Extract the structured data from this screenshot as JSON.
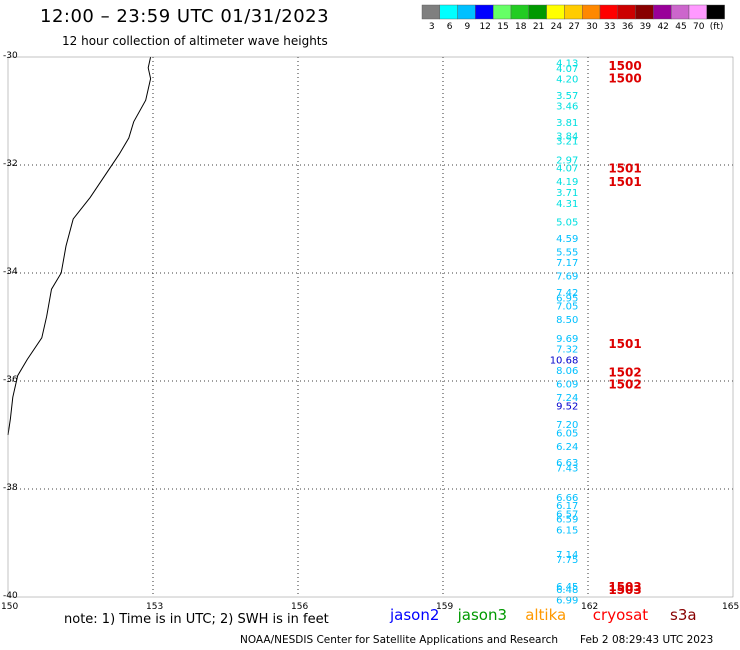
{
  "header": {
    "title": "12:00 – 23:59 UTC 01/31/2023",
    "subtitle": "12 hour collection of altimeter wave heights"
  },
  "color_scale": {
    "colors": [
      "#7f7f7f",
      "#00ffff",
      "#00c0ff",
      "#0000ff",
      "#66ff66",
      "#22cc22",
      "#009900",
      "#ffff00",
      "#ffcc00",
      "#ff8800",
      "#ff0000",
      "#cc0000",
      "#880000",
      "#990099",
      "#cc66cc",
      "#ff99ff",
      "#000000"
    ],
    "labels": [
      "3",
      "6",
      "9",
      "12",
      "15",
      "18",
      "21",
      "24",
      "27",
      "30",
      "33",
      "36",
      "39",
      "42",
      "45",
      "70",
      "(ft)"
    ]
  },
  "map": {
    "lon_ticks": [
      "150",
      "153",
      "156",
      "159",
      "162",
      "165"
    ],
    "lat_ticks": [
      "-30",
      "-32",
      "-34",
      "-36",
      "-38",
      "-40"
    ],
    "lon_range": [
      150,
      165
    ],
    "lat_range": [
      -30,
      -40
    ],
    "grid": "dotted"
  },
  "track": {
    "lon": 161.8,
    "readings": [
      {
        "lat": -30.1,
        "value": "4.13",
        "color": "#00e0e0"
      },
      {
        "lat": -30.2,
        "value": "4.07",
        "color": "#00e0e0"
      },
      {
        "lat": -30.4,
        "value": "4.20",
        "color": "#00e0e0"
      },
      {
        "lat": -30.7,
        "value": "3.57",
        "color": "#00e0e0"
      },
      {
        "lat": -30.9,
        "value": "3.46",
        "color": "#00e0e0"
      },
      {
        "lat": -31.2,
        "value": "3.81",
        "color": "#00e0e0"
      },
      {
        "lat": -31.45,
        "value": "3.84",
        "color": "#00e0e0"
      },
      {
        "lat": -31.55,
        "value": "3.21",
        "color": "#00e0e0"
      },
      {
        "lat": -31.9,
        "value": "2.97",
        "color": "#00e0e0"
      },
      {
        "lat": -32.05,
        "value": "4.07",
        "color": "#00e0e0"
      },
      {
        "lat": -32.3,
        "value": "4.19",
        "color": "#00e0e0"
      },
      {
        "lat": -32.5,
        "value": "3.71",
        "color": "#00e0e0"
      },
      {
        "lat": -32.7,
        "value": "4.31",
        "color": "#00e0e0"
      },
      {
        "lat": -33.05,
        "value": "5.05",
        "color": "#00e0e0"
      },
      {
        "lat": -33.35,
        "value": "4.59",
        "color": "#00c0ff"
      },
      {
        "lat": -33.6,
        "value": "5.55",
        "color": "#00c0ff"
      },
      {
        "lat": -33.8,
        "value": "7.17",
        "color": "#00c0ff"
      },
      {
        "lat": -34.05,
        "value": "7.69",
        "color": "#00c0ff"
      },
      {
        "lat": -34.35,
        "value": "7.42",
        "color": "#00c0ff"
      },
      {
        "lat": -34.45,
        "value": "6.95",
        "color": "#00c0ff"
      },
      {
        "lat": -34.6,
        "value": "7.05",
        "color": "#00c0ff"
      },
      {
        "lat": -34.85,
        "value": "8.50",
        "color": "#00c0ff"
      },
      {
        "lat": -35.2,
        "value": "9.69",
        "color": "#00c0ff"
      },
      {
        "lat": -35.4,
        "value": "7.32",
        "color": "#00c0ff"
      },
      {
        "lat": -35.6,
        "value": "10.68",
        "color": "#0000cc"
      },
      {
        "lat": -35.8,
        "value": "8.06",
        "color": "#00c0ff"
      },
      {
        "lat": -36.05,
        "value": "6.09",
        "color": "#00c0ff"
      },
      {
        "lat": -36.3,
        "value": "7.24",
        "color": "#00c0ff"
      },
      {
        "lat": -36.45,
        "value": "9.52",
        "color": "#0000cc"
      },
      {
        "lat": -36.8,
        "value": "7.20",
        "color": "#00c0ff"
      },
      {
        "lat": -36.95,
        "value": "6.05",
        "color": "#00c0ff"
      },
      {
        "lat": -37.2,
        "value": "6.24",
        "color": "#00c0ff"
      },
      {
        "lat": -37.5,
        "value": "6.63",
        "color": "#00c0ff"
      },
      {
        "lat": -37.6,
        "value": "7.43",
        "color": "#00c0ff"
      },
      {
        "lat": -38.15,
        "value": "6.66",
        "color": "#00c0ff"
      },
      {
        "lat": -38.3,
        "value": "6.17",
        "color": "#00c0ff"
      },
      {
        "lat": -38.45,
        "value": "6.57",
        "color": "#00c0ff"
      },
      {
        "lat": -38.55,
        "value": "6.59",
        "color": "#00c0ff"
      },
      {
        "lat": -38.75,
        "value": "6.15",
        "color": "#00c0ff"
      },
      {
        "lat": -39.2,
        "value": "7.14",
        "color": "#00c0ff"
      },
      {
        "lat": -39.3,
        "value": "7.75",
        "color": "#00c0ff"
      },
      {
        "lat": -39.8,
        "value": "6.45",
        "color": "#00c0ff"
      },
      {
        "lat": -39.85,
        "value": "6.48",
        "color": "#00c0ff"
      },
      {
        "lat": -40.05,
        "value": "6.99",
        "color": "#00c0ff"
      }
    ],
    "time_marks": [
      {
        "lat": -30.15,
        "label": "1500"
      },
      {
        "lat": -30.38,
        "label": "1500"
      },
      {
        "lat": -32.05,
        "label": "1501"
      },
      {
        "lat": -32.3,
        "label": "1501"
      },
      {
        "lat": -35.3,
        "label": "1501"
      },
      {
        "lat": -35.82,
        "label": "1502"
      },
      {
        "lat": -36.05,
        "label": "1502"
      },
      {
        "lat": -39.8,
        "label": "1503"
      },
      {
        "lat": -39.85,
        "label": "1503"
      }
    ],
    "time_mark_color": "#dd0000"
  },
  "coastline": [
    [
      152.95,
      -30.0
    ],
    [
      152.9,
      -30.2
    ],
    [
      152.95,
      -30.4
    ],
    [
      152.85,
      -30.8
    ],
    [
      152.6,
      -31.2
    ],
    [
      152.5,
      -31.5
    ],
    [
      152.3,
      -31.8
    ],
    [
      152.0,
      -32.2
    ],
    [
      151.7,
      -32.6
    ],
    [
      151.35,
      -33.0
    ],
    [
      151.2,
      -33.5
    ],
    [
      151.1,
      -34.0
    ],
    [
      150.9,
      -34.3
    ],
    [
      150.8,
      -34.8
    ],
    [
      150.7,
      -35.2
    ],
    [
      150.4,
      -35.6
    ],
    [
      150.2,
      -35.9
    ],
    [
      150.1,
      -36.3
    ],
    [
      150.05,
      -36.7
    ],
    [
      150.0,
      -37.0
    ]
  ],
  "note": "note:  1) Time is in UTC;  2) SWH is in feet",
  "satellites": [
    {
      "name": "jason2",
      "color": "#0000ff"
    },
    {
      "name": "jason3",
      "color": "#009900"
    },
    {
      "name": "altika",
      "color": "#ff9900"
    },
    {
      "name": "cryosat",
      "color": "#ff0000"
    },
    {
      "name": "s3a",
      "color": "#880000"
    }
  ],
  "footer": {
    "credit": "NOAA/NESDIS Center for Satellite Applications and Research",
    "generated": "Feb  2 08:29:43 UTC 2023"
  }
}
